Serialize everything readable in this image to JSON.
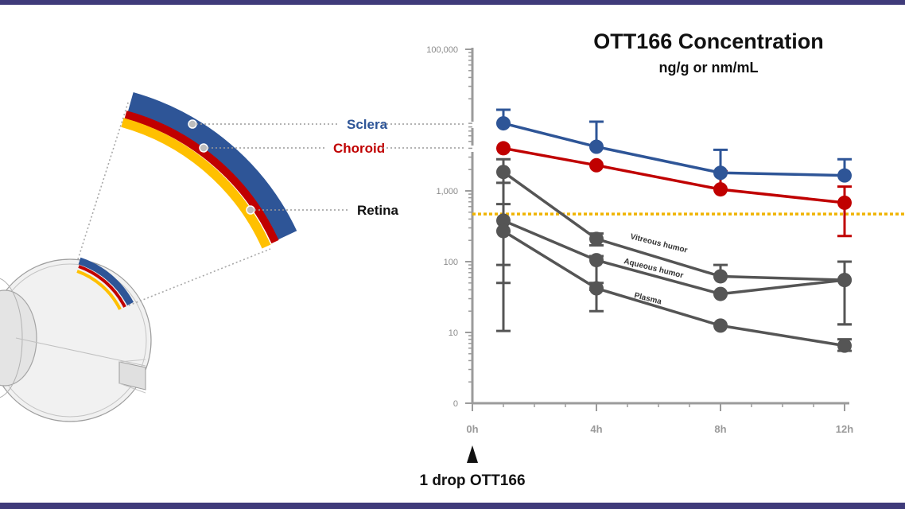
{
  "chart_data": {
    "type": "line",
    "title": "OTT166 Concentration",
    "subtitle": "ng/g or nm/mL",
    "yscale": "log",
    "y_tick_labels": [
      "100,000",
      "1,000",
      "100",
      "10",
      "0"
    ],
    "x_tick_labels": [
      "0h",
      "4h",
      "8h",
      "12h"
    ],
    "x_hours": [
      1,
      4,
      8,
      12
    ],
    "threshold": 470,
    "annotation": "1 drop OTT166",
    "series": [
      {
        "name": "Sclera",
        "color": "#2e5597",
        "values": [
          9000,
          4200,
          1800,
          1650
        ],
        "err_up": [
          14000,
          9500,
          3800,
          2800
        ],
        "err_low": [
          9000,
          4200,
          1800,
          1650
        ]
      },
      {
        "name": "Choroid",
        "color": "#c00000",
        "values": [
          4000,
          2300,
          1050,
          680
        ],
        "err_up": [
          4000,
          2300,
          1900,
          1150
        ],
        "err_low": [
          4000,
          2300,
          1050,
          230
        ]
      },
      {
        "name": "Vitreous humor",
        "color": "#555555",
        "values": [
          1850,
          210,
          62,
          55
        ],
        "err_up": [
          2800,
          250,
          90,
          100
        ],
        "err_low": [
          90,
          170,
          62,
          13
        ]
      },
      {
        "name": "Aqueous humor",
        "color": "#555555",
        "values": [
          380,
          105,
          35,
          55
        ],
        "err_up": [
          1300,
          120,
          35,
          55
        ],
        "err_low": [
          10.5,
          40,
          35,
          13
        ]
      },
      {
        "name": "Plasma",
        "color": "#555555",
        "values": [
          270,
          42,
          12.5,
          6.5
        ],
        "err_up": [
          650,
          50,
          12.5,
          8
        ],
        "err_low": [
          50,
          20,
          12.5,
          5.5
        ]
      }
    ]
  },
  "eye": {
    "sclera_label": "Sclera",
    "choroid_label": "Choroid",
    "retina_label": "Retina"
  },
  "colors": {
    "sclera": "#2e5597",
    "choroid": "#c00000",
    "retina": "#ffc000",
    "threshold": "#f0b400",
    "gray": "#555555",
    "band": "#3f3b7a"
  }
}
